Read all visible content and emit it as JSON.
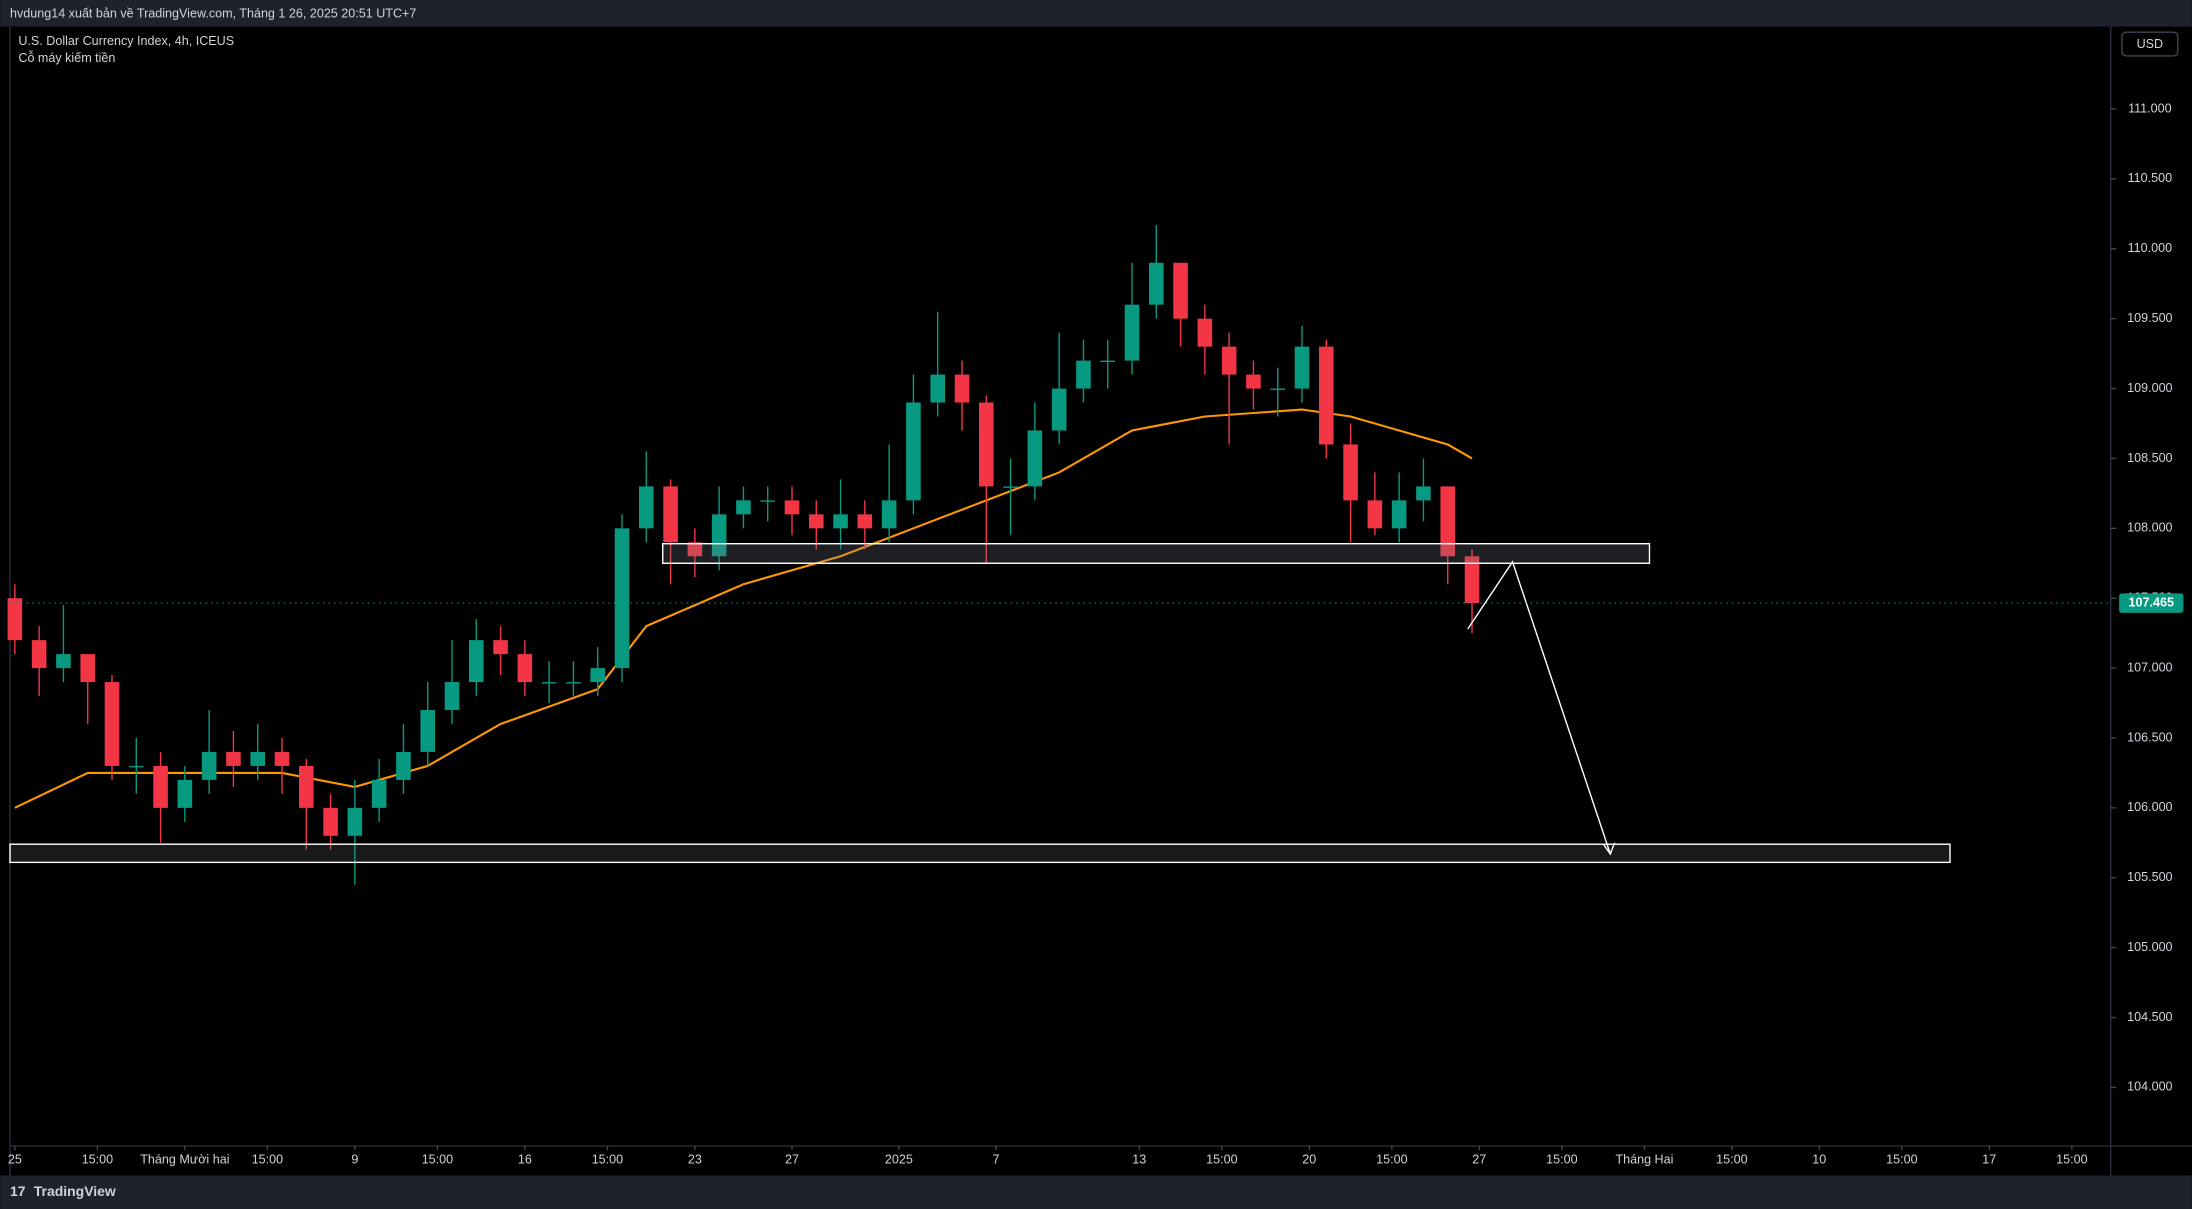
{
  "header": {
    "text": "hvdung14 xuất bản về TradingView.com, Tháng 1 26, 2025 20:51 UTC+7"
  },
  "footer": {
    "brand": "TradingView"
  },
  "chart_data": {
    "type": "candlestick",
    "title": "U.S. Dollar Currency Index, 4h, ICEUS",
    "subtitle": "Cỗ máy kiếm tiền",
    "currency_button": "USD",
    "up_color": "#089981",
    "down_color": "#f23645",
    "x": [
      0,
      1,
      2,
      3,
      4,
      5,
      6,
      7,
      8,
      9,
      10,
      11,
      12,
      13,
      14,
      15,
      16,
      17,
      18,
      19,
      20,
      21,
      22,
      23,
      24,
      25,
      26,
      27,
      28,
      29,
      30,
      31,
      32,
      33,
      34,
      35,
      36,
      37,
      38,
      39,
      40,
      41,
      42,
      43,
      44,
      45,
      46,
      47,
      48,
      49,
      50,
      51,
      52,
      53,
      54,
      55,
      56,
      57,
      58,
      59,
      60
    ],
    "open": [
      107.5,
      107.2,
      107.0,
      107.1,
      106.9,
      106.3,
      106.3,
      106.0,
      106.2,
      106.4,
      106.3,
      106.4,
      106.3,
      106.0,
      105.8,
      106.0,
      106.2,
      106.4,
      106.7,
      106.9,
      107.2,
      107.1,
      106.9,
      106.9,
      106.9,
      107.0,
      108.0,
      108.3,
      107.9,
      107.8,
      108.1,
      108.2,
      108.2,
      108.1,
      108.0,
      108.1,
      108.0,
      108.2,
      108.9,
      109.1,
      108.9,
      108.3,
      108.3,
      108.7,
      109.0,
      109.2,
      109.2,
      109.6,
      109.9,
      109.5,
      109.3,
      109.1,
      109.0,
      109.0,
      109.3,
      108.6,
      108.2,
      108.0,
      108.2,
      108.3,
      107.8
    ],
    "high": [
      107.6,
      107.3,
      107.45,
      107.1,
      106.95,
      106.5,
      106.4,
      106.3,
      106.7,
      106.55,
      106.6,
      106.5,
      106.35,
      106.1,
      106.2,
      106.35,
      106.6,
      106.9,
      107.2,
      107.35,
      107.3,
      107.2,
      107.05,
      107.05,
      107.15,
      108.1,
      108.55,
      108.35,
      108.0,
      108.3,
      108.3,
      108.3,
      108.3,
      108.2,
      108.35,
      108.2,
      108.6,
      109.1,
      109.55,
      109.2,
      108.95,
      108.5,
      108.9,
      109.4,
      109.35,
      109.35,
      109.9,
      110.17,
      109.9,
      109.6,
      109.4,
      109.2,
      109.15,
      109.45,
      109.35,
      108.75,
      108.4,
      108.4,
      108.5,
      108.3,
      107.85
    ],
    "low": [
      107.1,
      106.8,
      106.9,
      106.6,
      106.2,
      106.1,
      105.75,
      105.9,
      106.1,
      106.15,
      106.2,
      106.1,
      105.7,
      105.7,
      105.45,
      105.9,
      106.1,
      106.3,
      106.6,
      106.8,
      106.95,
      106.8,
      106.75,
      106.8,
      106.8,
      106.9,
      107.9,
      107.6,
      107.65,
      107.7,
      108.0,
      108.05,
      107.95,
      107.85,
      107.85,
      107.85,
      107.9,
      108.1,
      108.8,
      108.7,
      107.75,
      107.95,
      108.2,
      108.6,
      108.9,
      109.0,
      109.1,
      109.5,
      109.3,
      109.1,
      108.6,
      108.85,
      108.8,
      108.9,
      108.5,
      107.9,
      107.95,
      107.9,
      108.05,
      107.6,
      107.25
    ],
    "close": [
      107.2,
      107.0,
      107.1,
      106.9,
      106.3,
      106.3,
      106.0,
      106.2,
      106.4,
      106.3,
      106.4,
      106.3,
      106.0,
      105.8,
      106.0,
      106.2,
      106.4,
      106.7,
      106.9,
      107.2,
      107.1,
      106.9,
      106.9,
      106.9,
      107.0,
      108.0,
      108.3,
      107.9,
      107.8,
      108.1,
      108.2,
      108.2,
      108.1,
      108.0,
      108.1,
      108.0,
      108.2,
      108.9,
      109.1,
      108.9,
      108.3,
      108.3,
      108.7,
      109.0,
      109.2,
      109.2,
      109.6,
      109.9,
      109.5,
      109.3,
      109.1,
      109.0,
      109.0,
      109.3,
      108.6,
      108.2,
      108.0,
      108.2,
      108.3,
      107.8,
      107.465
    ],
    "last_price_label": "107.465",
    "last_price_color": "#089981",
    "ema": {
      "color": "#ff9800",
      "x": [
        0,
        3,
        6,
        11,
        14,
        17,
        20,
        24,
        26,
        30,
        34,
        37,
        40,
        43,
        46,
        49,
        53,
        55,
        57,
        59,
        60
      ],
      "values": [
        106.0,
        106.25,
        106.25,
        106.25,
        106.15,
        106.3,
        106.6,
        106.85,
        107.3,
        107.6,
        107.8,
        108.0,
        108.2,
        108.4,
        108.7,
        108.8,
        108.85,
        108.8,
        108.7,
        108.6,
        108.5
      ]
    },
    "xlim": [
      -0.2,
      86.3
    ],
    "xticks": [
      {
        "value": 0,
        "label": "25"
      },
      {
        "value": 3.4,
        "label": "15:00"
      },
      {
        "value": 7.0,
        "label": "Tháng Mười hai"
      },
      {
        "value": 10.4,
        "label": "15:00"
      },
      {
        "value": 14.0,
        "label": "9"
      },
      {
        "value": 17.4,
        "label": "15:00"
      },
      {
        "value": 21.0,
        "label": "16"
      },
      {
        "value": 24.4,
        "label": "15:00"
      },
      {
        "value": 28.0,
        "label": "23"
      },
      {
        "value": 32.0,
        "label": "27"
      },
      {
        "value": 36.4,
        "label": "2025"
      },
      {
        "value": 40.4,
        "label": "7"
      },
      {
        "value": 46.3,
        "label": "13"
      },
      {
        "value": 49.7,
        "label": "15:00"
      },
      {
        "value": 53.3,
        "label": "20"
      },
      {
        "value": 56.7,
        "label": "15:00"
      },
      {
        "value": 60.3,
        "label": "27"
      },
      {
        "value": 63.7,
        "label": "15:00"
      },
      {
        "value": 67.1,
        "label": "Tháng Hai"
      },
      {
        "value": 70.7,
        "label": "15:00"
      },
      {
        "value": 74.3,
        "label": "10"
      },
      {
        "value": 77.7,
        "label": "15:00"
      },
      {
        "value": 81.3,
        "label": "17"
      },
      {
        "value": 84.7,
        "label": "15:00"
      }
    ],
    "ylim": [
      103.58,
      111.58
    ],
    "yticks": [
      {
        "value": 104,
        "label": "104.000"
      },
      {
        "value": 104.5,
        "label": "104.500"
      },
      {
        "value": 105,
        "label": "105.000"
      },
      {
        "value": 105.5,
        "label": "105.500"
      },
      {
        "value": 106,
        "label": "106.000"
      },
      {
        "value": 106.5,
        "label": "106.500"
      },
      {
        "value": 107,
        "label": "107.000"
      },
      {
        "value": 107.5,
        "label": "107.500"
      },
      {
        "value": 108,
        "label": "108.000"
      },
      {
        "value": 108.5,
        "label": "108.500"
      },
      {
        "value": 109,
        "label": "109.000"
      },
      {
        "value": 109.5,
        "label": "109.500"
      },
      {
        "value": 110,
        "label": "110.000"
      },
      {
        "value": 110.5,
        "label": "110.500"
      },
      {
        "value": 111,
        "label": "111.000"
      }
    ]
  }
}
